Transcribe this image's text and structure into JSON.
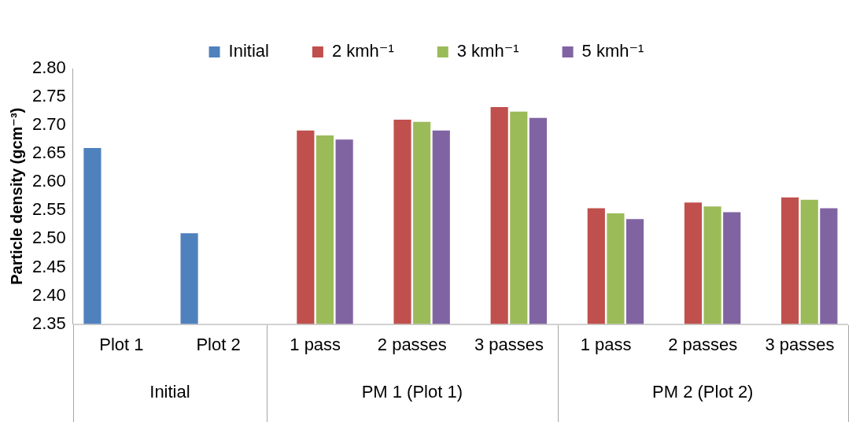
{
  "chart_data": {
    "type": "bar",
    "ylabel": "Particle density (gcm⁻³)",
    "categories": [
      "Plot 1",
      "Plot 2",
      "1 pass",
      "2 passes",
      "3 passes",
      "1 pass",
      "2 passes",
      "3 passes"
    ],
    "series": [
      {
        "name": "Initial",
        "color": "#4f81bd",
        "values": [
          2.66,
          2.51,
          null,
          null,
          null,
          null,
          null,
          null
        ]
      },
      {
        "name": "2 kmh⁻¹",
        "color": "#c0504d",
        "values": [
          null,
          null,
          2.691,
          2.71,
          2.732,
          2.554,
          2.564,
          2.573
        ]
      },
      {
        "name": "3 kmh⁻¹",
        "color": "#9bbb59",
        "values": [
          null,
          null,
          2.682,
          2.706,
          2.724,
          2.545,
          2.557,
          2.569
        ]
      },
      {
        "name": "5 kmh⁻¹",
        "color": "#8064a2",
        "values": [
          null,
          null,
          2.675,
          2.691,
          2.713,
          2.535,
          2.547,
          2.554
        ]
      }
    ],
    "annotations": [
      "Initial",
      "PM 1 (Plot 1)",
      "PM 2 (Plot 2)"
    ],
    "ylim": [
      2.35,
      2.8
    ],
    "yticks": [
      {
        "value": 2.35,
        "label": "2.35"
      },
      {
        "value": 2.4,
        "label": "2.40"
      },
      {
        "value": 2.45,
        "label": "2.45"
      },
      {
        "value": 2.5,
        "label": "2.50"
      },
      {
        "value": 2.55,
        "label": "2.55"
      },
      {
        "value": 2.6,
        "label": "2.60"
      },
      {
        "value": 2.65,
        "label": "2.65"
      },
      {
        "value": 2.7,
        "label": "2.70"
      },
      {
        "value": 2.75,
        "label": "2.75"
      },
      {
        "value": 2.8,
        "label": "2.80"
      }
    ],
    "grid": false,
    "legend": "top"
  }
}
